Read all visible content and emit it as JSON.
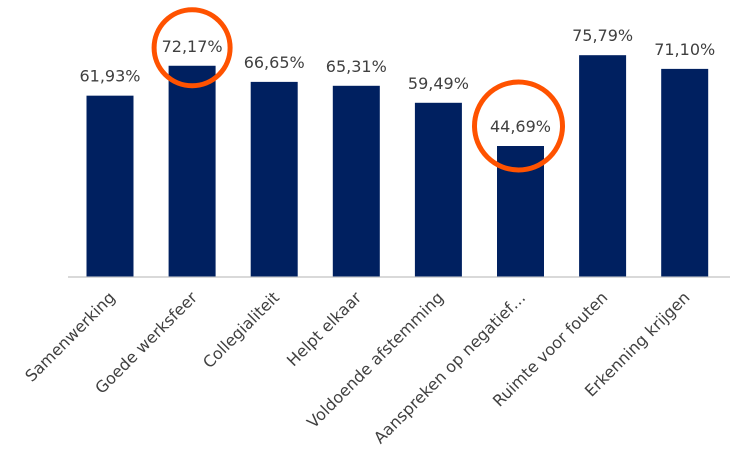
{
  "chart_data": {
    "type": "bar",
    "title": "",
    "xlabel": "",
    "ylabel": "",
    "ylim": [
      0,
      94.5
    ],
    "grid": false,
    "categories": [
      "Samenwerking",
      "Goede werksfeer",
      "Collegialiteit",
      "Helpt elkaar",
      "Voldoende afstemming",
      "Aanspreken op negatief…",
      "Ruimte voor fouten",
      "Erkenning krijgen"
    ],
    "values": [
      61.93,
      72.17,
      66.65,
      65.31,
      59.49,
      44.69,
      75.79,
      71.1
    ],
    "data_labels": [
      "61,93%",
      "72,17%",
      "66,65%",
      "65,31%",
      "59,49%",
      "44,69%",
      "75,79%",
      "71,10%"
    ],
    "highlighted": [
      "Goede werksfeer",
      "Aanspreken op negatief…"
    ],
    "colors": {
      "bar": "#002060",
      "highlight": "#FF5200",
      "axis": "#D9D9D9",
      "text": "#404040"
    }
  }
}
